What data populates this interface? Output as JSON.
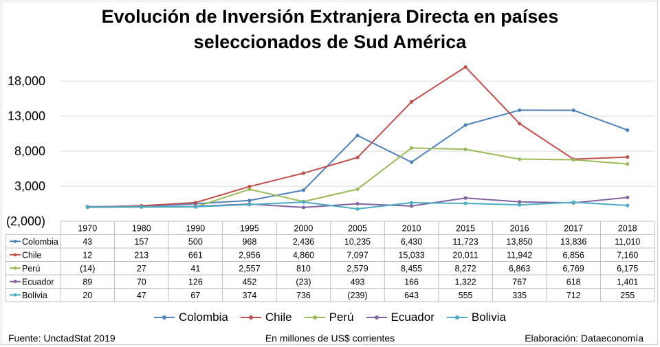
{
  "chart_data": {
    "type": "line",
    "title_line1": "Evolución de Inversión Extranjera Directa en países",
    "title_line2": "seleccionados de Sud América",
    "categories": [
      "1970",
      "1980",
      "1990",
      "1995",
      "2000",
      "2005",
      "2010",
      "2015",
      "2016",
      "2017",
      "2018"
    ],
    "y_ticks": [
      "18,000",
      "13,000",
      "8,000",
      "3,000",
      "(2,000)"
    ],
    "ylim": [
      -2000,
      20000
    ],
    "grid": true,
    "legend_position": "bottom",
    "series": [
      {
        "name": "Colombia",
        "color": "#4f81bd",
        "values": [
          43,
          157,
          500,
          968,
          2436,
          10235,
          6430,
          11723,
          13850,
          13836,
          11010
        ],
        "labels": [
          "43",
          "157",
          "500",
          "968",
          "2,436",
          "10,235",
          "6,430",
          "11,723",
          "13,850",
          "13,836",
          "11,010"
        ]
      },
      {
        "name": "Chile",
        "color": "#c0504d",
        "values": [
          12,
          213,
          661,
          2956,
          4860,
          7097,
          15033,
          20011,
          11942,
          6856,
          7160
        ],
        "labels": [
          "12",
          "213",
          "661",
          "2,956",
          "4,860",
          "7,097",
          "15,033",
          "20,011",
          "11,942",
          "6,856",
          "7,160"
        ]
      },
      {
        "name": "Perú",
        "color": "#9bbb59",
        "values": [
          -14,
          27,
          41,
          2557,
          810,
          2579,
          8455,
          8272,
          6863,
          6769,
          6175
        ],
        "labels": [
          "(14)",
          "27",
          "41",
          "2,557",
          "810",
          "2,579",
          "8,455",
          "8,272",
          "6,863",
          "6,769",
          "6,175"
        ]
      },
      {
        "name": "Ecuador",
        "color": "#8064a2",
        "values": [
          89,
          70,
          126,
          452,
          -23,
          493,
          166,
          1322,
          767,
          618,
          1401
        ],
        "labels": [
          "89",
          "70",
          "126",
          "452",
          "(23)",
          "493",
          "166",
          "1,322",
          "767",
          "618",
          "1,401"
        ]
      },
      {
        "name": "Bolivia",
        "color": "#4bacc6",
        "values": [
          20,
          47,
          67,
          374,
          736,
          -239,
          643,
          555,
          335,
          712,
          255
        ],
        "labels": [
          "20",
          "47",
          "67",
          "374",
          "736",
          "(239)",
          "643",
          "555",
          "335",
          "712",
          "255"
        ]
      }
    ]
  },
  "footer": {
    "source": "Fuente: UnctadStat 2019",
    "units": "En millones de US$ corrientes",
    "credit": "Elaboración: Dataeconomía"
  }
}
